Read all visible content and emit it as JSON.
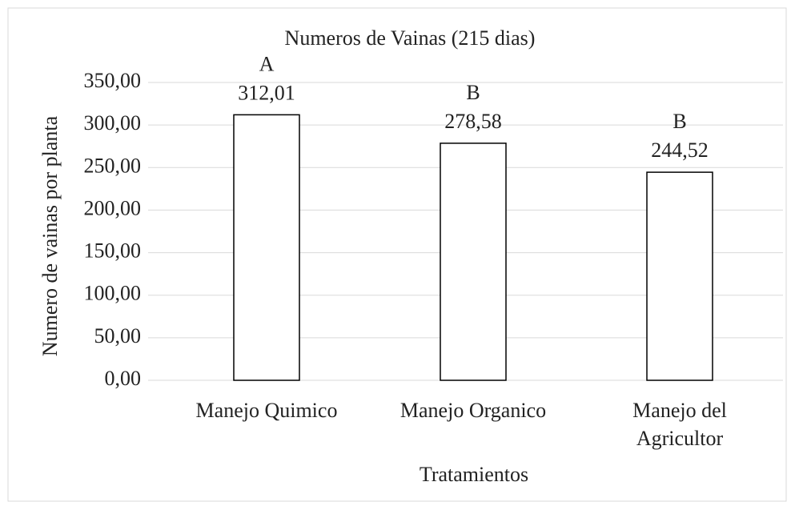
{
  "chart_data": {
    "type": "bar",
    "title": "Numeros de Vainas  (215 dias)",
    "x_label": "Tratamientos",
    "y_label": "Numero de vainas por planta",
    "categories": [
      "Manejo Quimico",
      "Manejo Organico",
      "Manejo del Agricultor"
    ],
    "values": [
      312.01,
      278.58,
      244.52
    ],
    "value_labels": [
      "312,01",
      "278,58",
      "244,52"
    ],
    "annotations": [
      "A",
      "B",
      "B"
    ],
    "color": "#ffffff",
    "edge_color": "#000000",
    "ylim": [
      0,
      350
    ],
    "yticks": [
      {
        "value": 0,
        "label": "0,00"
      },
      {
        "value": 50,
        "label": "50,00"
      },
      {
        "value": 100,
        "label": "100,00"
      },
      {
        "value": 150,
        "label": "150,00"
      },
      {
        "value": 200,
        "label": "200,00"
      },
      {
        "value": 250,
        "label": "250,00"
      },
      {
        "value": 300,
        "label": "300,00"
      },
      {
        "value": 350,
        "label": "350,00"
      }
    ],
    "grid": true
  }
}
